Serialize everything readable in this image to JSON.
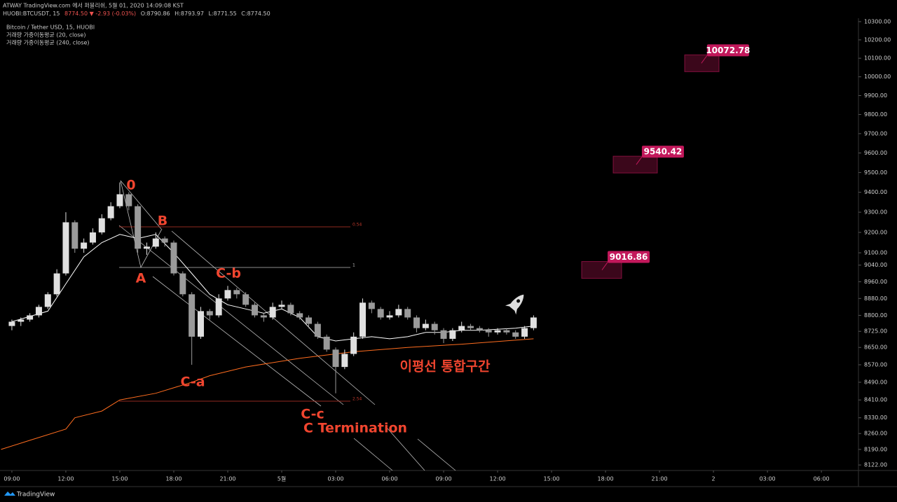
{
  "header": {
    "publisher": "ATWAY TradingView.com 에서 퍼블리쉬, 5월 01, 2020 14:09:08 KST",
    "symbol": "HUOBI:BTCUSDT, 15",
    "last": "8774.50",
    "arrow": "▼",
    "change": "-2.93 (-0.03%)",
    "open": "O:8790.86",
    "high": "H:8793.97",
    "low": "L:8771.55",
    "close": "C:8774.50"
  },
  "chart_data": {
    "type": "candlestick",
    "title": "Bitcoin / Tether USD, 15, HUOBI",
    "x": [
      0,
      0.5,
      1,
      1.5,
      2,
      2.5,
      3,
      3.5,
      4,
      4.5,
      5,
      5.5,
      6,
      6.5,
      7,
      7.5,
      8,
      8.5,
      9,
      9.5,
      10,
      10.5,
      11,
      11.5,
      12,
      12.5,
      13,
      13.5,
      14,
      14.5,
      15,
      15.5,
      16,
      16.5,
      17,
      17.5,
      18,
      18.5,
      19,
      19.5,
      20,
      20.5,
      21,
      21.5,
      22,
      22.5,
      23,
      23.5,
      24,
      24.5,
      25,
      25.5,
      26,
      26.5,
      27,
      27.5,
      28,
      28.5,
      29
    ],
    "open": [
      8750,
      8770,
      8780,
      8800,
      8840,
      8900,
      9000,
      9250,
      9120,
      9150,
      9200,
      9270,
      9330,
      9390,
      9330,
      9120,
      9130,
      9170,
      9150,
      9000,
      8900,
      8700,
      8820,
      8800,
      8880,
      8920,
      8900,
      8850,
      8800,
      8790,
      8840,
      8850,
      8810,
      8790,
      8760,
      8700,
      8640,
      8560,
      8620,
      8700,
      8860,
      8830,
      8790,
      8800,
      8830,
      8790,
      8740,
      8760,
      8730,
      8690,
      8730,
      8750,
      8740,
      8730,
      8720,
      8730,
      8720,
      8700,
      8740
    ],
    "high": [
      8780,
      8790,
      8810,
      8850,
      8910,
      9020,
      9300,
      9260,
      9170,
      9220,
      9290,
      9350,
      9450,
      9400,
      9340,
      9150,
      9200,
      9180,
      9160,
      9010,
      8910,
      8840,
      8830,
      8900,
      8940,
      8930,
      8910,
      8860,
      8810,
      8860,
      8870,
      8860,
      8820,
      8800,
      8770,
      8710,
      8650,
      8640,
      8720,
      8880,
      8870,
      8840,
      8820,
      8850,
      8840,
      8800,
      8780,
      8770,
      8740,
      8740,
      8770,
      8760,
      8750,
      8740,
      8740,
      8740,
      8730,
      8750,
      8800
    ],
    "low": [
      8730,
      8750,
      8770,
      8790,
      8830,
      8890,
      8990,
      9100,
      9100,
      9140,
      9190,
      9260,
      9320,
      9310,
      9100,
      9090,
      9120,
      9130,
      8990,
      8890,
      8570,
      8690,
      8780,
      8790,
      8870,
      8880,
      8840,
      8790,
      8770,
      8780,
      8830,
      8800,
      8780,
      8740,
      8690,
      8630,
      8440,
      8550,
      8610,
      8690,
      8810,
      8780,
      8780,
      8790,
      8780,
      8720,
      8730,
      8710,
      8670,
      8680,
      8720,
      8730,
      8720,
      8700,
      8710,
      8710,
      8690,
      8690,
      8730
    ],
    "close": [
      8770,
      8780,
      8800,
      8840,
      8900,
      9000,
      9250,
      9120,
      9150,
      9200,
      9270,
      9330,
      9390,
      9330,
      9120,
      9130,
      9170,
      9150,
      9000,
      8900,
      8700,
      8820,
      8800,
      8880,
      8920,
      8900,
      8850,
      8800,
      8790,
      8840,
      8850,
      8810,
      8790,
      8760,
      8700,
      8640,
      8560,
      8620,
      8700,
      8860,
      8830,
      8790,
      8800,
      8830,
      8790,
      8740,
      8760,
      8730,
      8690,
      8730,
      8750,
      8740,
      8730,
      8720,
      8730,
      8720,
      8700,
      8740,
      8790
    ],
    "up_color": "#e0e0e0",
    "down_color": "#9a9a9a",
    "lines": [
      {
        "name": "거래량 가중이동평균 (20, close)",
        "color": "#ffffff",
        "x": [
          0,
          2,
          3,
          4,
          5,
          6,
          7,
          8,
          9,
          10,
          11,
          12,
          13,
          14,
          15,
          16,
          17,
          18,
          19,
          20,
          21,
          22,
          23,
          24,
          25,
          26,
          27,
          28,
          29
        ],
        "values": [
          8770,
          8820,
          8950,
          9080,
          9150,
          9190,
          9170,
          9190,
          9100,
          9000,
          8900,
          8850,
          8830,
          8810,
          8830,
          8790,
          8700,
          8680,
          8690,
          8700,
          8690,
          8700,
          8720,
          8720,
          8730,
          8730,
          8735,
          8740,
          8750
        ]
      },
      {
        "name": "거래량 가중이동평균 (240, close)",
        "color": "#ff6d1f",
        "x": [
          -0.6,
          1,
          3,
          3.5,
          5,
          6,
          8,
          10,
          11,
          13,
          16,
          19,
          22,
          25,
          29
        ],
        "values": [
          8190,
          8230,
          8280,
          8330,
          8360,
          8410,
          8440,
          8490,
          8520,
          8560,
          8600,
          8630,
          8650,
          8665,
          8690
        ]
      }
    ],
    "xlim": [
      -0.66,
      47.06
    ],
    "xticks": [
      {
        "value": 0,
        "label": "09:00"
      },
      {
        "value": 3,
        "label": "12:00"
      },
      {
        "value": 6,
        "label": "15:00"
      },
      {
        "value": 9,
        "label": "18:00"
      },
      {
        "value": 12,
        "label": "21:00"
      },
      {
        "value": 15,
        "label": "5월"
      },
      {
        "value": 18,
        "label": "03:00"
      },
      {
        "value": 21,
        "label": "06:00"
      },
      {
        "value": 24,
        "label": "09:00"
      },
      {
        "value": 27,
        "label": "12:00"
      },
      {
        "value": 30,
        "label": "15:00"
      },
      {
        "value": 33,
        "label": "18:00"
      },
      {
        "value": 36,
        "label": "21:00"
      },
      {
        "value": 39,
        "label": "2"
      },
      {
        "value": 42,
        "label": "03:00"
      },
      {
        "value": 45,
        "label": "06:00"
      }
    ],
    "ylim": [
      8098,
      10319
    ],
    "log": true,
    "yticks": [
      {
        "value": 10300,
        "label": "10300.00"
      },
      {
        "value": 10200,
        "label": "10200.00"
      },
      {
        "value": 10100,
        "label": "10100.00"
      },
      {
        "value": 10000,
        "label": "10000.00"
      },
      {
        "value": 9900,
        "label": "9900.00"
      },
      {
        "value": 9800,
        "label": "9800.00"
      },
      {
        "value": 9700,
        "label": "9700.00"
      },
      {
        "value": 9600,
        "label": "9600.00"
      },
      {
        "value": 9500,
        "label": "9500.00"
      },
      {
        "value": 9400,
        "label": "9400.00"
      },
      {
        "value": 9300,
        "label": "9300.00"
      },
      {
        "value": 9200,
        "label": "9200.00"
      },
      {
        "value": 9100,
        "label": "9100.00"
      },
      {
        "value": 9040,
        "label": "9040.00"
      },
      {
        "value": 8960,
        "label": "8960.00"
      },
      {
        "value": 8880,
        "label": "8880.00"
      },
      {
        "value": 8800,
        "label": "8800.00"
      },
      {
        "value": 8725,
        "label": "8725.00"
      },
      {
        "value": 8650,
        "label": "8650.00"
      },
      {
        "value": 8570,
        "label": "8570.00"
      },
      {
        "value": 8490,
        "label": "8490.00"
      },
      {
        "value": 8410,
        "label": "8410.00"
      },
      {
        "value": 8330,
        "label": "8330.00"
      },
      {
        "value": 8260,
        "label": "8260.00"
      },
      {
        "value": 8190,
        "label": "8190.00"
      },
      {
        "value": 8122,
        "label": "8122.00"
      }
    ],
    "grid": false,
    "fib_labels": [
      "0.54",
      "1",
      "2.54"
    ],
    "annotations": [
      "0",
      "B",
      "A",
      "C-b",
      "C-a",
      "C-c",
      "C Termination",
      "이평선 통합구간"
    ],
    "annotation_color": "#f0452f",
    "targets": [
      9016.86,
      9540.42,
      10072.78
    ],
    "target_color": "#c2185b"
  },
  "footer": "TradingView"
}
